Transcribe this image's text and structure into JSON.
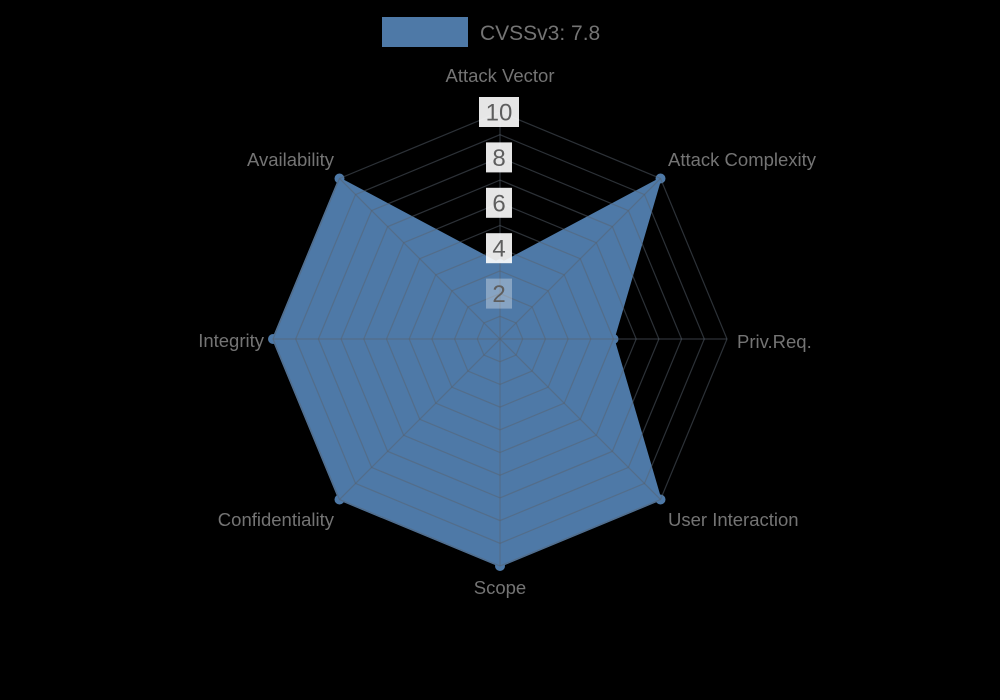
{
  "legend": {
    "label": "CVSSv3: 7.8"
  },
  "chart_data": {
    "type": "radar",
    "title": "CVSSv3: 7.8",
    "categories": [
      "Attack Vector",
      "Attack Complexity",
      "Priv.Req.",
      "User Interaction",
      "Scope",
      "Confidentiality",
      "Integrity",
      "Availability"
    ],
    "series": [
      {
        "name": "CVSSv3: 7.8",
        "values": [
          3.3,
          10,
          5,
          10,
          10,
          10,
          10,
          10
        ]
      }
    ],
    "axis_values": {
      "Attack Vector": 3.3,
      "Attack Complexity": 10,
      "Priv.Req.": 5,
      "User Interaction": 10,
      "Scope": 10,
      "Confidentiality": 10,
      "Integrity": 10,
      "Availability": 10
    },
    "ticks": [
      2,
      4,
      6,
      8,
      10
    ],
    "range": [
      0,
      10
    ],
    "rings_every": 1,
    "grid": true,
    "legend_position": "top-center",
    "colors": {
      "background": "#000000",
      "fill": "#4e79a7",
      "grid": "rgba(88,98,110,0.5)",
      "label_text": "#747474",
      "tick_text": "#5e5e5e",
      "tick_box": "#ffffff"
    }
  }
}
